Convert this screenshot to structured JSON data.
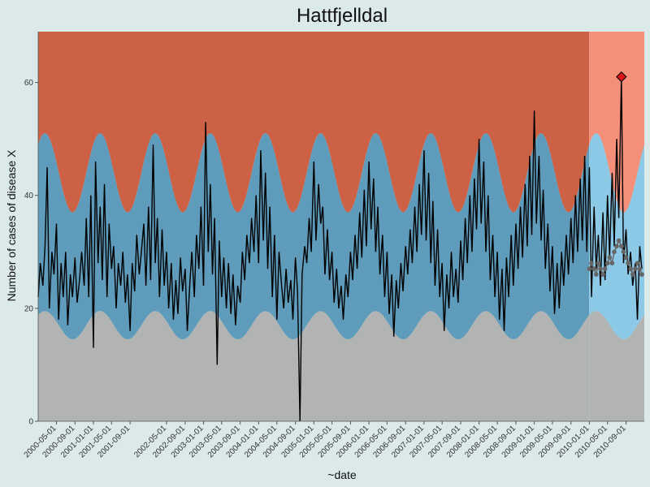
{
  "chart_data": {
    "type": "line",
    "title": "Hattfjelldal",
    "xlabel": "~date",
    "ylabel": "Number of cases of disease X",
    "ylim": [
      0,
      69
    ],
    "xlim": [
      "2000-01-01",
      "2010-12-31"
    ],
    "y_ticks": [
      0,
      20,
      40,
      60
    ],
    "x_ticks": [
      "2000-05-01",
      "2000-09-01",
      "2001-01-01",
      "2001-05-01",
      "2001-09-01",
      "2002-05-01",
      "2002-09-01",
      "2003-01-01",
      "2003-05-01",
      "2003-09-01",
      "2004-01-01",
      "2004-05-01",
      "2004-09-01",
      "2005-01-01",
      "2005-05-01",
      "2005-09-01",
      "2006-01-01",
      "2006-05-01",
      "2006-09-01",
      "2007-01-01",
      "2007-05-01",
      "2007-09-01",
      "2008-01-01",
      "2008-05-01",
      "2008-09-01",
      "2009-01-01",
      "2009-05-01",
      "2009-09-01",
      "2010-01-01",
      "2010-05-01",
      "2010-09-01"
    ],
    "grid": false,
    "legend": "none",
    "colors": {
      "background": "#dbe9e9",
      "upper_band": "#cc6146",
      "upper_band_test": "#f4907a",
      "middle_band": "#5f9bbb",
      "middle_band_test": "#8cc9e6",
      "lower_band": "#b1b4b2",
      "observed_line": "#000000",
      "expected_line": "#666666",
      "alert_marker": "#d9161a"
    },
    "training_end": "2009-12-31",
    "seasonal_model": {
      "lower_base": 17,
      "lower_amp": 2.5,
      "upper_base": 29,
      "upper_amp": 9,
      "top_base": 44,
      "top_amp": 7,
      "peak_day": 45,
      "period": 365.25
    },
    "observed": [
      [
        "2000-01-01",
        22
      ],
      [
        "2000-01-15",
        28
      ],
      [
        "2000-02-01",
        24
      ],
      [
        "2000-02-15",
        31
      ],
      [
        "2000-03-01",
        45
      ],
      [
        "2000-03-15",
        20
      ],
      [
        "2000-04-01",
        30
      ],
      [
        "2000-04-15",
        26
      ],
      [
        "2000-05-01",
        35
      ],
      [
        "2000-05-15",
        18
      ],
      [
        "2000-06-01",
        28
      ],
      [
        "2000-06-15",
        22
      ],
      [
        "2000-07-01",
        30
      ],
      [
        "2000-07-15",
        17
      ],
      [
        "2000-08-01",
        26
      ],
      [
        "2000-08-15",
        22
      ],
      [
        "2000-09-01",
        29
      ],
      [
        "2000-09-15",
        21
      ],
      [
        "2000-10-01",
        25
      ],
      [
        "2000-10-15",
        30
      ],
      [
        "2000-11-01",
        24
      ],
      [
        "2000-11-15",
        36
      ],
      [
        "2000-12-01",
        22
      ],
      [
        "2000-12-15",
        40
      ],
      [
        "2001-01-01",
        13
      ],
      [
        "2001-01-15",
        46
      ],
      [
        "2001-02-01",
        28
      ],
      [
        "2001-02-15",
        38
      ],
      [
        "2001-03-01",
        25
      ],
      [
        "2001-03-15",
        42
      ],
      [
        "2001-04-01",
        22
      ],
      [
        "2001-04-15",
        35
      ],
      [
        "2001-05-01",
        27
      ],
      [
        "2001-05-15",
        31
      ],
      [
        "2001-06-01",
        20
      ],
      [
        "2001-06-15",
        28
      ],
      [
        "2001-07-01",
        24
      ],
      [
        "2001-07-15",
        30
      ],
      [
        "2001-08-01",
        21
      ],
      [
        "2001-08-15",
        26
      ],
      [
        "2001-09-01",
        16
      ],
      [
        "2001-09-15",
        28
      ],
      [
        "2001-10-01",
        23
      ],
      [
        "2001-10-15",
        33
      ],
      [
        "2001-11-01",
        26
      ],
      [
        "2001-11-15",
        30
      ],
      [
        "2001-12-01",
        35
      ],
      [
        "2001-12-15",
        24
      ],
      [
        "2002-01-01",
        38
      ],
      [
        "2002-01-15",
        25
      ],
      [
        "2002-02-01",
        49
      ],
      [
        "2002-02-15",
        28
      ],
      [
        "2002-03-01",
        36
      ],
      [
        "2002-03-15",
        22
      ],
      [
        "2002-04-01",
        34
      ],
      [
        "2002-04-15",
        24
      ],
      [
        "2002-05-01",
        30
      ],
      [
        "2002-05-15",
        20
      ],
      [
        "2002-06-01",
        28
      ],
      [
        "2002-06-15",
        18
      ],
      [
        "2002-07-01",
        25
      ],
      [
        "2002-07-15",
        19
      ],
      [
        "2002-08-01",
        29
      ],
      [
        "2002-08-15",
        23
      ],
      [
        "2002-09-01",
        27
      ],
      [
        "2002-09-15",
        16
      ],
      [
        "2002-10-01",
        24
      ],
      [
        "2002-10-15",
        30
      ],
      [
        "2002-11-01",
        22
      ],
      [
        "2002-11-15",
        33
      ],
      [
        "2002-12-01",
        27
      ],
      [
        "2002-12-15",
        38
      ],
      [
        "2003-01-01",
        24
      ],
      [
        "2003-01-15",
        53
      ],
      [
        "2003-02-01",
        30
      ],
      [
        "2003-02-15",
        42
      ],
      [
        "2003-03-01",
        26
      ],
      [
        "2003-03-15",
        36
      ],
      [
        "2003-04-01",
        10
      ],
      [
        "2003-04-15",
        32
      ],
      [
        "2003-05-01",
        22
      ],
      [
        "2003-05-15",
        29
      ],
      [
        "2003-06-01",
        20
      ],
      [
        "2003-06-15",
        28
      ],
      [
        "2003-07-01",
        19
      ],
      [
        "2003-07-15",
        26
      ],
      [
        "2003-08-01",
        17
      ],
      [
        "2003-08-15",
        24
      ],
      [
        "2003-09-01",
        21
      ],
      [
        "2003-09-15",
        30
      ],
      [
        "2003-10-01",
        25
      ],
      [
        "2003-10-15",
        33
      ],
      [
        "2003-11-01",
        28
      ],
      [
        "2003-11-15",
        36
      ],
      [
        "2003-12-01",
        30
      ],
      [
        "2003-12-15",
        40
      ],
      [
        "2004-01-01",
        28
      ],
      [
        "2004-01-15",
        48
      ],
      [
        "2004-02-01",
        32
      ],
      [
        "2004-02-15",
        44
      ],
      [
        "2004-03-01",
        27
      ],
      [
        "2004-03-15",
        38
      ],
      [
        "2004-04-01",
        22
      ],
      [
        "2004-04-15",
        33
      ],
      [
        "2004-05-01",
        18
      ],
      [
        "2004-05-15",
        30
      ],
      [
        "2004-06-01",
        24
      ],
      [
        "2004-06-15",
        20
      ],
      [
        "2004-07-01",
        27
      ],
      [
        "2004-07-15",
        21
      ],
      [
        "2004-08-01",
        25
      ],
      [
        "2004-08-15",
        18
      ],
      [
        "2004-09-01",
        29
      ],
      [
        "2004-09-15",
        23
      ],
      [
        "2004-10-01",
        0
      ],
      [
        "2004-10-15",
        26
      ],
      [
        "2004-11-01",
        31
      ],
      [
        "2004-11-15",
        28
      ],
      [
        "2004-12-01",
        36
      ],
      [
        "2004-12-15",
        30
      ],
      [
        "2005-01-01",
        46
      ],
      [
        "2005-01-15",
        32
      ],
      [
        "2005-02-01",
        42
      ],
      [
        "2005-02-15",
        35
      ],
      [
        "2005-03-01",
        38
      ],
      [
        "2005-03-15",
        26
      ],
      [
        "2005-04-01",
        34
      ],
      [
        "2005-04-15",
        25
      ],
      [
        "2005-05-01",
        30
      ],
      [
        "2005-05-15",
        21
      ],
      [
        "2005-06-01",
        27
      ],
      [
        "2005-06-15",
        20
      ],
      [
        "2005-07-01",
        24
      ],
      [
        "2005-07-15",
        18
      ],
      [
        "2005-08-01",
        26
      ],
      [
        "2005-08-15",
        22
      ],
      [
        "2005-09-01",
        30
      ],
      [
        "2005-09-15",
        25
      ],
      [
        "2005-10-01",
        33
      ],
      [
        "2005-10-15",
        27
      ],
      [
        "2005-11-01",
        37
      ],
      [
        "2005-11-15",
        29
      ],
      [
        "2005-12-01",
        41
      ],
      [
        "2005-12-15",
        31
      ],
      [
        "2006-01-01",
        46
      ],
      [
        "2006-01-15",
        34
      ],
      [
        "2006-02-01",
        43
      ],
      [
        "2006-02-15",
        30
      ],
      [
        "2006-03-01",
        38
      ],
      [
        "2006-03-15",
        26
      ],
      [
        "2006-04-01",
        33
      ],
      [
        "2006-04-15",
        22
      ],
      [
        "2006-05-01",
        30
      ],
      [
        "2006-05-15",
        19
      ],
      [
        "2006-06-01",
        26
      ],
      [
        "2006-06-15",
        15
      ],
      [
        "2006-07-01",
        25
      ],
      [
        "2006-07-15",
        20
      ],
      [
        "2006-08-01",
        28
      ],
      [
        "2006-08-15",
        23
      ],
      [
        "2006-09-01",
        31
      ],
      [
        "2006-09-15",
        26
      ],
      [
        "2006-10-01",
        34
      ],
      [
        "2006-10-15",
        28
      ],
      [
        "2006-11-01",
        38
      ],
      [
        "2006-11-15",
        30
      ],
      [
        "2006-12-01",
        42
      ],
      [
        "2006-12-15",
        33
      ],
      [
        "2007-01-01",
        48
      ],
      [
        "2007-01-15",
        32
      ],
      [
        "2007-02-01",
        44
      ],
      [
        "2007-02-15",
        28
      ],
      [
        "2007-03-01",
        39
      ],
      [
        "2007-03-15",
        24
      ],
      [
        "2007-04-01",
        34
      ],
      [
        "2007-04-15",
        22
      ],
      [
        "2007-05-01",
        28
      ],
      [
        "2007-05-15",
        16
      ],
      [
        "2007-06-01",
        26
      ],
      [
        "2007-06-15",
        20
      ],
      [
        "2007-07-01",
        30
      ],
      [
        "2007-07-15",
        22
      ],
      [
        "2007-08-01",
        27
      ],
      [
        "2007-08-15",
        21
      ],
      [
        "2007-09-01",
        32
      ],
      [
        "2007-09-15",
        25
      ],
      [
        "2007-10-01",
        36
      ],
      [
        "2007-10-15",
        28
      ],
      [
        "2007-11-01",
        40
      ],
      [
        "2007-11-15",
        30
      ],
      [
        "2007-12-01",
        43
      ],
      [
        "2007-12-15",
        34
      ],
      [
        "2008-01-01",
        50
      ],
      [
        "2008-01-15",
        35
      ],
      [
        "2008-02-01",
        46
      ],
      [
        "2008-02-15",
        30
      ],
      [
        "2008-03-01",
        40
      ],
      [
        "2008-03-15",
        25
      ],
      [
        "2008-04-01",
        33
      ],
      [
        "2008-04-15",
        22
      ],
      [
        "2008-05-01",
        30
      ],
      [
        "2008-05-15",
        18
      ],
      [
        "2008-06-01",
        27
      ],
      [
        "2008-06-15",
        16
      ],
      [
        "2008-07-01",
        29
      ],
      [
        "2008-07-15",
        22
      ],
      [
        "2008-08-01",
        33
      ],
      [
        "2008-08-15",
        24
      ],
      [
        "2008-09-01",
        35
      ],
      [
        "2008-09-15",
        27
      ],
      [
        "2008-10-01",
        38
      ],
      [
        "2008-10-15",
        29
      ],
      [
        "2008-11-01",
        42
      ],
      [
        "2008-11-15",
        31
      ],
      [
        "2008-12-01",
        47
      ],
      [
        "2008-12-15",
        33
      ],
      [
        "2009-01-01",
        55
      ],
      [
        "2009-01-15",
        35
      ],
      [
        "2009-02-01",
        47
      ],
      [
        "2009-02-15",
        32
      ],
      [
        "2009-03-01",
        41
      ],
      [
        "2009-03-15",
        27
      ],
      [
        "2009-04-01",
        35
      ],
      [
        "2009-04-15",
        23
      ],
      [
        "2009-05-01",
        31
      ],
      [
        "2009-05-15",
        19
      ],
      [
        "2009-06-01",
        28
      ],
      [
        "2009-06-15",
        20
      ],
      [
        "2009-07-01",
        30
      ],
      [
        "2009-07-15",
        24
      ],
      [
        "2009-08-01",
        33
      ],
      [
        "2009-08-15",
        26
      ],
      [
        "2009-09-01",
        36
      ],
      [
        "2009-09-15",
        28
      ],
      [
        "2009-10-01",
        40
      ],
      [
        "2009-10-15",
        30
      ],
      [
        "2009-11-01",
        43
      ],
      [
        "2009-11-15",
        32
      ],
      [
        "2009-12-01",
        47
      ],
      [
        "2009-12-15",
        30
      ],
      [
        "2010-01-01",
        45
      ],
      [
        "2010-01-15",
        22
      ],
      [
        "2010-02-01",
        38
      ],
      [
        "2010-02-15",
        27
      ],
      [
        "2010-03-01",
        33
      ],
      [
        "2010-03-15",
        24
      ],
      [
        "2010-04-01",
        37
      ],
      [
        "2010-04-15",
        25
      ],
      [
        "2010-05-01",
        40
      ],
      [
        "2010-05-15",
        29
      ],
      [
        "2010-06-01",
        44
      ],
      [
        "2010-06-15",
        31
      ],
      [
        "2010-07-01",
        50
      ],
      [
        "2010-07-15",
        36
      ],
      [
        "2010-08-01",
        61
      ],
      [
        "2010-08-15",
        28
      ],
      [
        "2010-09-01",
        34
      ],
      [
        "2010-09-15",
        26
      ],
      [
        "2010-10-01",
        30
      ],
      [
        "2010-10-15",
        24
      ],
      [
        "2010-11-01",
        28
      ],
      [
        "2010-11-15",
        18
      ],
      [
        "2010-12-01",
        31
      ],
      [
        "2010-12-15",
        27
      ]
    ],
    "expected": [
      [
        "2010-01-01",
        27
      ],
      [
        "2010-01-15",
        28
      ],
      [
        "2010-02-01",
        27
      ],
      [
        "2010-02-15",
        26
      ],
      [
        "2010-03-01",
        28
      ],
      [
        "2010-03-15",
        27
      ],
      [
        "2010-04-01",
        26
      ],
      [
        "2010-04-15",
        27
      ],
      [
        "2010-05-01",
        28
      ],
      [
        "2010-05-15",
        29
      ],
      [
        "2010-06-01",
        28
      ],
      [
        "2010-06-15",
        30
      ],
      [
        "2010-07-01",
        31
      ],
      [
        "2010-07-15",
        32
      ],
      [
        "2010-08-01",
        31
      ],
      [
        "2010-08-15",
        30
      ],
      [
        "2010-09-01",
        29
      ],
      [
        "2010-09-15",
        28
      ],
      [
        "2010-10-01",
        27
      ],
      [
        "2010-10-15",
        26
      ],
      [
        "2010-11-01",
        27
      ],
      [
        "2010-11-15",
        28
      ],
      [
        "2010-12-01",
        27
      ],
      [
        "2010-12-15",
        26
      ]
    ],
    "alert": [
      "2010-08-01",
      61
    ]
  }
}
